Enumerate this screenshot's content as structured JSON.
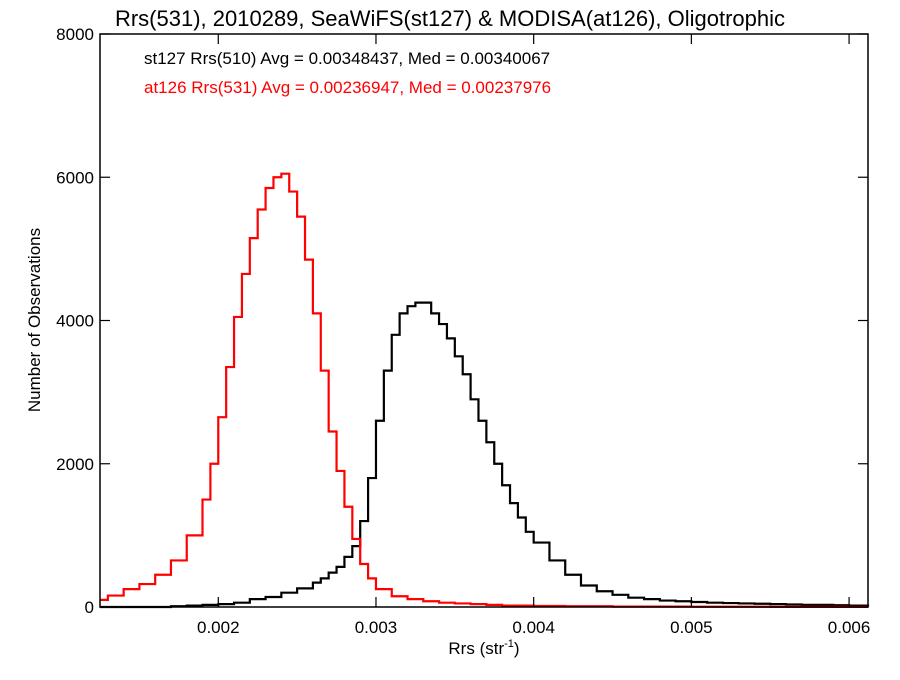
{
  "chart_data": {
    "type": "line",
    "title": "Rrs(531), 2010289, SeaWiFS(st127) & MODISA(at126), Oligotrophic",
    "xlabel": "Rrs (str",
    "xlabel_superscript": "-1",
    "xlabel_suffix": ")",
    "ylabel": "Number of Observations",
    "xlim": [
      0.00125,
      0.00612
    ],
    "ylim": [
      0,
      8000
    ],
    "xticks": [
      0.002,
      0.003,
      0.004,
      0.005,
      0.006
    ],
    "xtick_labels": [
      "0.002",
      "0.003",
      "0.004",
      "0.005",
      "0.006"
    ],
    "yticks": [
      0,
      2000,
      4000,
      6000,
      8000
    ],
    "ytick_labels": [
      "0",
      "2000",
      "4000",
      "6000",
      "8000"
    ],
    "grid": false,
    "annotations": [
      {
        "text": "st127 Rrs(510) Avg = 0.00348437, Med = 0.00340067",
        "color": "#000000"
      },
      {
        "text": "at126 Rrs(531) Avg = 0.00236947, Med = 0.00237976",
        "color": "#ff0000"
      }
    ],
    "series": [
      {
        "color": "#000000",
        "step": true,
        "x": [
          0.00125,
          0.0013,
          0.0014,
          0.0015,
          0.0016,
          0.0017,
          0.0018,
          0.0019,
          0.002,
          0.0021,
          0.0022,
          0.0023,
          0.0024,
          0.0025,
          0.0026,
          0.00265,
          0.0027,
          0.00275,
          0.0028,
          0.00285,
          0.0029,
          0.00295,
          0.003,
          0.00305,
          0.0031,
          0.00315,
          0.0032,
          0.00325,
          0.0033,
          0.00335,
          0.0034,
          0.00345,
          0.0035,
          0.00355,
          0.0036,
          0.00365,
          0.0037,
          0.00375,
          0.0038,
          0.00385,
          0.0039,
          0.00395,
          0.004,
          0.0041,
          0.0042,
          0.0043,
          0.0044,
          0.0045,
          0.0046,
          0.0047,
          0.0048,
          0.0049,
          0.005,
          0.0051,
          0.0052,
          0.0053,
          0.0054,
          0.0055,
          0.0056,
          0.0057,
          0.0058,
          0.0059,
          0.006,
          0.00612
        ],
        "values": [
          0,
          0,
          0,
          0,
          0,
          10,
          20,
          30,
          40,
          60,
          110,
          140,
          200,
          260,
          340,
          400,
          480,
          560,
          700,
          850,
          1200,
          1800,
          2600,
          3300,
          3800,
          4100,
          4200,
          4250,
          4250,
          4100,
          3950,
          3750,
          3500,
          3250,
          2900,
          2600,
          2300,
          2000,
          1700,
          1450,
          1250,
          1050,
          900,
          650,
          450,
          300,
          220,
          170,
          130,
          110,
          90,
          80,
          70,
          60,
          55,
          50,
          45,
          40,
          35,
          30,
          30,
          25,
          20,
          15
        ]
      },
      {
        "color": "#ff0000",
        "step": true,
        "x": [
          0.00125,
          0.0013,
          0.0014,
          0.0015,
          0.0016,
          0.0017,
          0.0018,
          0.0019,
          0.00195,
          0.002,
          0.00205,
          0.0021,
          0.00215,
          0.0022,
          0.00225,
          0.0023,
          0.00235,
          0.0024,
          0.00245,
          0.0025,
          0.00255,
          0.0026,
          0.00265,
          0.0027,
          0.00275,
          0.0028,
          0.00285,
          0.0029,
          0.00295,
          0.003,
          0.0031,
          0.0032,
          0.0033,
          0.0034,
          0.0035,
          0.0036,
          0.0037,
          0.0038,
          0.004,
          0.0042,
          0.0045,
          0.005,
          0.0055,
          0.006,
          0.00612
        ],
        "values": [
          100,
          160,
          250,
          320,
          450,
          650,
          1000,
          1500,
          2000,
          2650,
          3350,
          4050,
          4650,
          5150,
          5550,
          5850,
          6000,
          6050,
          5800,
          5450,
          4850,
          4100,
          3300,
          2450,
          1900,
          1400,
          950,
          600,
          400,
          250,
          150,
          110,
          80,
          60,
          50,
          40,
          30,
          20,
          15,
          10,
          5,
          3,
          2,
          1,
          0
        ]
      }
    ]
  }
}
